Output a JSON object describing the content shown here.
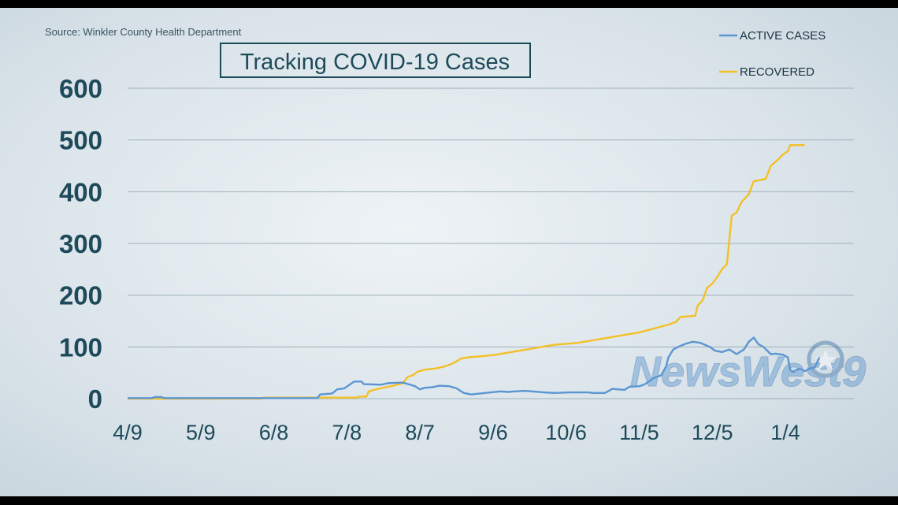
{
  "source": "Source: Winkler County Health Department",
  "watermark": "NewsWest9",
  "colors": {
    "active": "#5b96d2",
    "recovered": "#f3c027",
    "text": "#1e4a5a",
    "grid": "#9eb0ba"
  },
  "chart_data": {
    "type": "line",
    "title": "Tracking COVID-19 Cases",
    "xlabel": "",
    "ylabel": "",
    "ylim": [
      0,
      600
    ],
    "yticks": [
      "0",
      "100",
      "200",
      "300",
      "400",
      "500",
      "600"
    ],
    "xlim_days": [
      0,
      300
    ],
    "xticks": [
      {
        "label": "4/9",
        "day": 0
      },
      {
        "label": "5/9",
        "day": 30
      },
      {
        "label": "6/8",
        "day": 60
      },
      {
        "label": "7/8",
        "day": 90
      },
      {
        "label": "8/7",
        "day": 120
      },
      {
        "label": "9/6",
        "day": 150
      },
      {
        "label": "10/6",
        "day": 180
      },
      {
        "label": "11/5",
        "day": 210
      },
      {
        "label": "12/5",
        "day": 240
      },
      {
        "label": "1/4",
        "day": 270
      }
    ],
    "grid": true,
    "legend_position": "top-right",
    "series": [
      {
        "name": "ACTIVE CASES",
        "points": [
          [
            0,
            1
          ],
          [
            10,
            1
          ],
          [
            11,
            3
          ],
          [
            14,
            3
          ],
          [
            15,
            1
          ],
          [
            78,
            1
          ],
          [
            79,
            8
          ],
          [
            84,
            10
          ],
          [
            86,
            18
          ],
          [
            89,
            20
          ],
          [
            93,
            33
          ],
          [
            96,
            33
          ],
          [
            97,
            28
          ],
          [
            104,
            27
          ],
          [
            107,
            30
          ],
          [
            113,
            31
          ],
          [
            116,
            27
          ],
          [
            118,
            24
          ],
          [
            120,
            18
          ],
          [
            122,
            21
          ],
          [
            125,
            22
          ],
          [
            128,
            25
          ],
          [
            132,
            24
          ],
          [
            135,
            20
          ],
          [
            138,
            11
          ],
          [
            141,
            8
          ],
          [
            145,
            10
          ],
          [
            149,
            12
          ],
          [
            153,
            14
          ],
          [
            156,
            13
          ],
          [
            159,
            14
          ],
          [
            163,
            15
          ],
          [
            166,
            14
          ],
          [
            171,
            12
          ],
          [
            175,
            11
          ],
          [
            182,
            12
          ],
          [
            189,
            12
          ],
          [
            191,
            11
          ],
          [
            196,
            11
          ],
          [
            199,
            19
          ],
          [
            201,
            18
          ],
          [
            204,
            17
          ],
          [
            206,
            23
          ],
          [
            210,
            24
          ],
          [
            212,
            27
          ],
          [
            214,
            33
          ],
          [
            216,
            40
          ],
          [
            219,
            45
          ],
          [
            221,
            62
          ],
          [
            222,
            80
          ],
          [
            224,
            95
          ],
          [
            226,
            100
          ],
          [
            229,
            106
          ],
          [
            232,
            110
          ],
          [
            235,
            108
          ],
          [
            239,
            100
          ],
          [
            241,
            93
          ],
          [
            244,
            90
          ],
          [
            247,
            95
          ],
          [
            250,
            86
          ],
          [
            253,
            95
          ],
          [
            255,
            110
          ],
          [
            257,
            118
          ],
          [
            259,
            105
          ],
          [
            261,
            100
          ],
          [
            264,
            86
          ],
          [
            266,
            87
          ],
          [
            269,
            85
          ],
          [
            271,
            80
          ],
          [
            272,
            55
          ],
          [
            273,
            52
          ],
          [
            275,
            56
          ],
          [
            276,
            58
          ],
          [
            278,
            53
          ],
          [
            280,
            58
          ],
          [
            282,
            60
          ],
          [
            284,
            80
          ]
        ]
      },
      {
        "name": "RECOVERED",
        "points": [
          [
            0,
            0
          ],
          [
            55,
            0
          ],
          [
            56,
            2
          ],
          [
            94,
            2
          ],
          [
            95,
            4
          ],
          [
            98,
            4
          ],
          [
            99,
            14
          ],
          [
            102,
            18
          ],
          [
            106,
            22
          ],
          [
            110,
            26
          ],
          [
            113,
            30
          ],
          [
            115,
            42
          ],
          [
            117,
            45
          ],
          [
            119,
            52
          ],
          [
            122,
            56
          ],
          [
            126,
            58
          ],
          [
            130,
            62
          ],
          [
            133,
            67
          ],
          [
            135,
            72
          ],
          [
            137,
            78
          ],
          [
            140,
            80
          ],
          [
            145,
            82
          ],
          [
            150,
            84
          ],
          [
            155,
            88
          ],
          [
            160,
            92
          ],
          [
            165,
            96
          ],
          [
            170,
            100
          ],
          [
            175,
            104
          ],
          [
            180,
            106
          ],
          [
            185,
            108
          ],
          [
            190,
            112
          ],
          [
            195,
            116
          ],
          [
            200,
            120
          ],
          [
            205,
            124
          ],
          [
            210,
            128
          ],
          [
            214,
            133
          ],
          [
            218,
            138
          ],
          [
            222,
            143
          ],
          [
            225,
            148
          ],
          [
            227,
            158
          ],
          [
            233,
            160
          ],
          [
            234,
            180
          ],
          [
            236,
            190
          ],
          [
            238,
            215
          ],
          [
            240,
            222
          ],
          [
            242,
            235
          ],
          [
            244,
            250
          ],
          [
            246,
            260
          ],
          [
            248,
            354
          ],
          [
            250,
            360
          ],
          [
            252,
            380
          ],
          [
            255,
            395
          ],
          [
            257,
            420
          ],
          [
            262,
            425
          ],
          [
            264,
            450
          ],
          [
            267,
            462
          ],
          [
            269,
            472
          ],
          [
            271,
            478
          ],
          [
            272,
            490
          ],
          [
            278,
            490
          ]
        ]
      }
    ]
  }
}
